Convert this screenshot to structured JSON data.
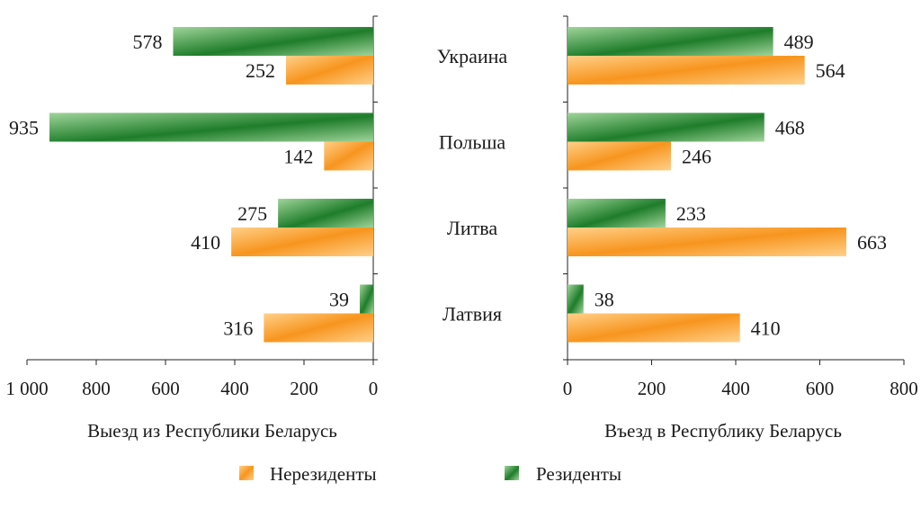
{
  "colors": {
    "residents_dark": "#1e7d2a",
    "residents_light": "#9fd49a",
    "nonresidents_dark": "#f7951e",
    "nonresidents_light": "#ffd089",
    "axis": "#222222"
  },
  "chart_data": [
    {
      "type": "bar",
      "orientation": "horizontal",
      "direction": "right-to-left",
      "categories": [
        "Украина",
        "Польша",
        "Литва",
        "Латвия"
      ],
      "series": [
        {
          "name": "Резиденты",
          "values": [
            578,
            935,
            275,
            39
          ]
        },
        {
          "name": "Нерезиденты",
          "values": [
            252,
            142,
            410,
            316
          ]
        }
      ],
      "value_labels": {
        "Резиденты": [
          "578",
          "935",
          "275",
          "39"
        ],
        "Нерезиденты": [
          "252",
          "142",
          "410",
          "316"
        ]
      },
      "xlim": [
        0,
        1000
      ],
      "tick_labels": [
        "1 000",
        "800",
        "600",
        "400",
        "200",
        "0"
      ],
      "xlabel": "Выезд из Республики Беларусь",
      "grid": false
    },
    {
      "type": "bar",
      "orientation": "horizontal",
      "direction": "left-to-right",
      "categories": [
        "Украина",
        "Польша",
        "Литва",
        "Латвия"
      ],
      "series": [
        {
          "name": "Резиденты",
          "values": [
            489,
            468,
            233,
            38
          ]
        },
        {
          "name": "Нерезиденты",
          "values": [
            564,
            246,
            663,
            410
          ]
        }
      ],
      "value_labels": {
        "Резиденты": [
          "489",
          "468",
          "233",
          "38"
        ],
        "Нерезиденты": [
          "564",
          "246",
          "663",
          "410"
        ]
      },
      "xlim": [
        0,
        800
      ],
      "tick_labels": [
        "0",
        "200",
        "400",
        "600",
        "800"
      ],
      "xlabel": "Въезд в Республику Беларусь",
      "grid": false
    }
  ],
  "legend": {
    "placement": "bottom",
    "items": [
      {
        "label": "Нерезиденты",
        "color_key": "nonresidents"
      },
      {
        "label": "Резиденты",
        "color_key": "residents"
      }
    ]
  }
}
